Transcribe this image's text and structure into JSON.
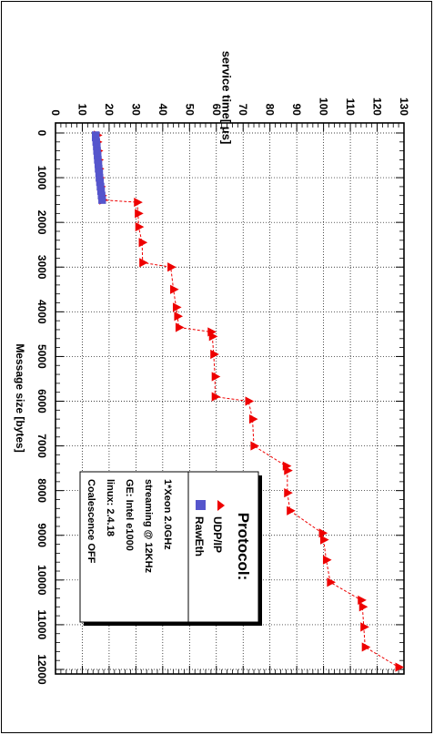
{
  "chart_data": {
    "type": "scatter",
    "orientation": "rotated-90-clockwise",
    "ylabel": "service time[ μs]",
    "xlabel": "Message size [bytes]",
    "xlim": [
      0,
      12300
    ],
    "ylim": [
      0,
      130
    ],
    "x_ticks": [
      "0",
      "1000",
      "2000",
      "3000",
      "4000",
      "5000",
      "6000",
      "7000",
      "8000",
      "9000",
      "10000",
      "11000",
      "12000"
    ],
    "y_ticks": [
      "0",
      "10",
      "20",
      "30",
      "40",
      "50",
      "60",
      "70",
      "80",
      "90",
      "100",
      "110",
      "120",
      "130"
    ],
    "grid": true,
    "series": [
      {
        "name": "UDP/IP",
        "marker": "triangle",
        "line": "dashed",
        "color": "#ee0000",
        "points": [
          [
            50,
            15.5
          ],
          [
            200,
            15.5
          ],
          [
            400,
            15.8
          ],
          [
            600,
            16.0
          ],
          [
            800,
            16.2
          ],
          [
            1000,
            16.4
          ],
          [
            1200,
            16.8
          ],
          [
            1400,
            17.2
          ],
          [
            1500,
            17.6
          ],
          [
            1550,
            30.5
          ],
          [
            1800,
            30.8
          ],
          [
            2100,
            31.0
          ],
          [
            2450,
            32.3
          ],
          [
            2900,
            32.5
          ],
          [
            3000,
            43.0
          ],
          [
            3500,
            44.0
          ],
          [
            3900,
            45.0
          ],
          [
            4100,
            45.5
          ],
          [
            4350,
            46.0
          ],
          [
            4450,
            58.0
          ],
          [
            4550,
            58.5
          ],
          [
            4950,
            59.0
          ],
          [
            5450,
            59.5
          ],
          [
            5900,
            59.5
          ],
          [
            6000,
            72.0
          ],
          [
            6400,
            73.5
          ],
          [
            7000,
            74.0
          ],
          [
            7450,
            86.0
          ],
          [
            7550,
            86.5
          ],
          [
            8050,
            86.5
          ],
          [
            8450,
            87.5
          ],
          [
            8950,
            99.5
          ],
          [
            9100,
            100.0
          ],
          [
            9550,
            101.0
          ],
          [
            10050,
            102.5
          ],
          [
            10450,
            114.0
          ],
          [
            10600,
            114.5
          ],
          [
            11050,
            115.0
          ],
          [
            11500,
            115.5
          ],
          [
            11950,
            128.0
          ]
        ]
      },
      {
        "name": "RawEth",
        "marker": "square",
        "line": "none",
        "color": "#5555cc",
        "points": [
          [
            50,
            15.0
          ],
          [
            100,
            15.0
          ],
          [
            200,
            15.2
          ],
          [
            300,
            15.4
          ],
          [
            400,
            15.5
          ],
          [
            500,
            15.7
          ],
          [
            600,
            15.8
          ],
          [
            700,
            16.0
          ],
          [
            800,
            16.1
          ],
          [
            900,
            16.3
          ],
          [
            1000,
            16.4
          ],
          [
            1100,
            16.6
          ],
          [
            1200,
            16.8
          ],
          [
            1300,
            17.0
          ],
          [
            1400,
            17.2
          ],
          [
            1500,
            17.4
          ]
        ]
      }
    ]
  },
  "legend": {
    "title": "Protocol:",
    "entries": [
      "UDP/IP",
      "RawEth"
    ],
    "notes": [
      "1*Xeon 2.0GHz",
      "streaming @ 12KHz",
      "GE: Intel e1000",
      "linux: 2.4.18",
      "Coalescence OFF"
    ]
  }
}
